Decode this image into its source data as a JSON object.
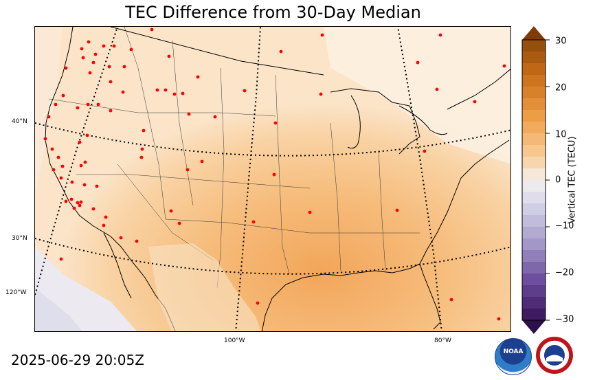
{
  "title": "TEC Difference from 30-Day Median",
  "timestamp": "2025-06-29 20:05Z",
  "colorbar": {
    "label": "Vertical TEC (TECU)",
    "ticks": [
      "30",
      "20",
      "10",
      "0",
      "−10",
      "−20",
      "−30"
    ],
    "min": -30,
    "max": 30,
    "low_color": "#2d0f4a",
    "high_color": "#7f3b08"
  },
  "lat_labels": [
    "40°N",
    "30°N",
    "120°W"
  ],
  "lon_labels": [
    "100°W",
    "80°W"
  ],
  "logos": {
    "noaa": "NOAA",
    "nws": "NATIONAL WEATHER SERVICE"
  },
  "colors": {
    "land_fill": "#fbe4c8",
    "positive_mid": "#f7be7e",
    "positive_strong": "#f3a95f",
    "neutral": "#f4f1f0",
    "negative_light": "#e3e2ef",
    "station_marker": "#ff0000"
  }
}
